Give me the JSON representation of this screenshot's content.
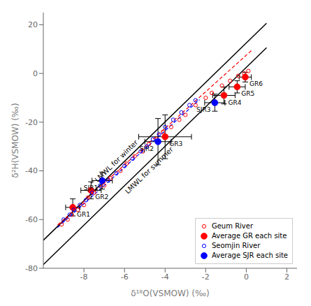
{
  "chart_data": {
    "type": "scatter",
    "xlabel": "δ¹⁸O(VSMOW) (‰)",
    "ylabel": "δ²H(VSMOW) (‰)",
    "xlim": [
      -10,
      2.5
    ],
    "ylim": [
      -80,
      25
    ],
    "xticks": [
      -8,
      -6,
      -4,
      -2,
      0,
      2
    ],
    "yticks": [
      -80,
      -60,
      -40,
      -20,
      0,
      20
    ],
    "grid": false,
    "legend": "lower right",
    "series": [
      {
        "name": "Geum River",
        "type": "scatter",
        "marker": "open circle",
        "color": "red",
        "x": [
          -9.1,
          -8.8,
          -8.6,
          -8.3,
          -8.0,
          -7.8,
          -7.5,
          -7.0,
          -6.7,
          -6.2,
          -5.9,
          -5.5,
          -5.1,
          -4.8,
          -4.4,
          -4.1,
          -3.7,
          -3.3,
          -3.0,
          -2.5,
          -2.0,
          -1.7,
          -1.2,
          -0.8,
          -0.4,
          -0.1,
          0.1
        ],
        "values": [
          -62,
          -60,
          -58,
          -56,
          -54,
          -51,
          -49,
          -46,
          -43,
          -40,
          -37,
          -34,
          -32,
          -29,
          -27,
          -24,
          -22,
          -19,
          -17,
          -13,
          -10,
          -8,
          -5,
          -3,
          -1,
          0,
          1
        ]
      },
      {
        "name": "Average GR each site",
        "type": "scatter",
        "marker": "filled circle",
        "color": "red",
        "labels": [
          "GR1",
          "GR2",
          "GR3",
          "GR4",
          "GR5",
          "GR6"
        ],
        "x": [
          -8.55,
          -7.65,
          -4.0,
          -1.1,
          -0.45,
          -0.05
        ],
        "values": [
          -55.0,
          -48.0,
          -26.0,
          -9.0,
          -5.5,
          -1.5
        ],
        "x_error": [
          0.35,
          0.5,
          1.3,
          0.55,
          0.4,
          0.3
        ],
        "y_error": [
          3.5,
          3.5,
          9.0,
          3.5,
          2.5,
          2.0
        ]
      },
      {
        "name": "Seomjin River",
        "type": "scatter",
        "marker": "open circle",
        "color": "blue",
        "x": [
          -9.0,
          -8.7,
          -8.5,
          -8.2,
          -7.9,
          -7.6,
          -7.2,
          -6.8,
          -6.4,
          -6.0,
          -5.6,
          -5.2,
          -4.9,
          -4.6,
          -4.3,
          -4.0,
          -3.6,
          -3.2,
          -2.8,
          -2.5
        ],
        "values": [
          -60,
          -58,
          -56,
          -54,
          -52,
          -49,
          -46,
          -44,
          -41,
          -38,
          -35,
          -32,
          -30,
          -27,
          -25,
          -22,
          -19,
          -16,
          -13,
          -11
        ]
      },
      {
        "name": "Average SJR each site",
        "type": "scatter",
        "marker": "filled circle",
        "color": "blue",
        "labels": [
          "SJR1",
          "SJR2",
          "SJR3"
        ],
        "x": [
          -7.1,
          -4.35,
          -1.55
        ],
        "values": [
          -44.0,
          -28.0,
          -12.0
        ],
        "x_error": [
          0.5,
          0.65,
          0.5
        ],
        "y_error": [
          3.5,
          9.5,
          3.5
        ]
      },
      {
        "type": "line",
        "line_style": "solid",
        "color": "black",
        "label": "LMWL for winter",
        "x": [
          -10.0,
          1.0
        ],
        "values": [
          -68.5,
          20.6
        ]
      },
      {
        "type": "line",
        "line_style": "solid",
        "color": "black",
        "label": "LMWL for summer",
        "x": [
          -10.0,
          1.0
        ],
        "values": [
          -78.5,
          10.6
        ]
      },
      {
        "type": "line",
        "line_style": "dashed",
        "color": "red",
        "x": [
          -9.3,
          0.3
        ],
        "values": [
          -62.25,
          9.75
        ]
      },
      {
        "type": "line",
        "line_style": "dashed",
        "color": "blue",
        "x": [
          -9.3,
          -2.3
        ],
        "values": [
          -63.25,
          -10.75
        ]
      }
    ]
  }
}
